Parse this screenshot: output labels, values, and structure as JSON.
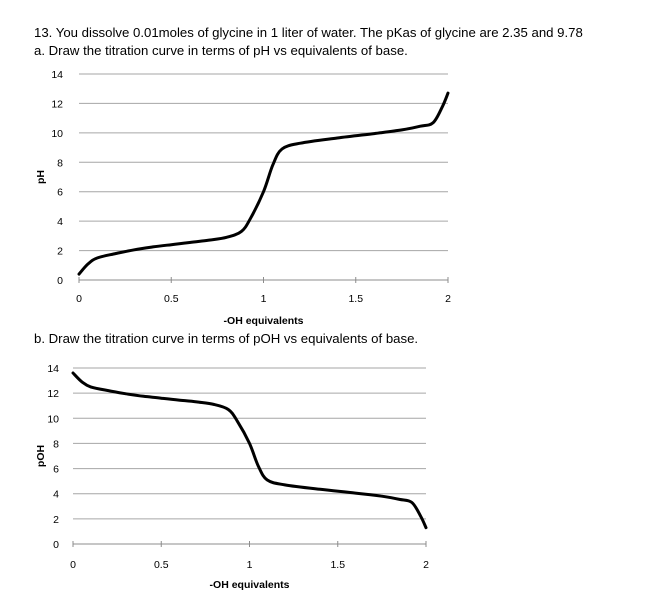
{
  "question": {
    "header": "13. You dissolve 0.01moles of glycine in 1 liter of water. The pKas of glycine are 2.35 and 9.78",
    "part_a": "a. Draw the titration curve in terms of pH vs equivalents of base.",
    "part_b": "b. Draw the titration curve in terms of pOH vs equivalents of base."
  },
  "chart_data": [
    {
      "type": "line",
      "title": "",
      "xlabel": "-OH equivalents",
      "ylabel": "pH",
      "xlim": [
        0,
        2
      ],
      "ylim": [
        0,
        14
      ],
      "x_ticks": [
        "0",
        "0.5",
        "1",
        "1.5",
        "2"
      ],
      "y_ticks": [
        "0",
        "2",
        "4",
        "6",
        "8",
        "10",
        "12",
        "14"
      ],
      "grid": "horizontal",
      "series": [
        {
          "values": [
            [
              0.0,
              0.4
            ],
            [
              0.05,
              1.1
            ],
            [
              0.1,
              1.5
            ],
            [
              0.2,
              1.8
            ],
            [
              0.3,
              2.05
            ],
            [
              0.4,
              2.25
            ],
            [
              0.5,
              2.4
            ],
            [
              0.6,
              2.55
            ],
            [
              0.7,
              2.7
            ],
            [
              0.8,
              2.9
            ],
            [
              0.88,
              3.3
            ],
            [
              0.93,
              4.2
            ],
            [
              1.0,
              6.0
            ],
            [
              1.05,
              7.8
            ],
            [
              1.1,
              8.9
            ],
            [
              1.2,
              9.3
            ],
            [
              1.4,
              9.65
            ],
            [
              1.6,
              9.95
            ],
            [
              1.75,
              10.2
            ],
            [
              1.85,
              10.45
            ],
            [
              1.92,
              10.7
            ],
            [
              1.97,
              11.8
            ],
            [
              2.0,
              12.7
            ]
          ]
        }
      ]
    },
    {
      "type": "line",
      "title": "",
      "xlabel": "-OH equivalents",
      "ylabel": "pOH",
      "xlim": [
        0,
        2
      ],
      "ylim": [
        0,
        14
      ],
      "x_ticks": [
        "0",
        "0.5",
        "1",
        "1.5",
        "2"
      ],
      "y_ticks": [
        "0",
        "2",
        "4",
        "6",
        "8",
        "10",
        "12",
        "14"
      ],
      "grid": "horizontal",
      "series": [
        {
          "values": [
            [
              0.0,
              13.6
            ],
            [
              0.05,
              12.9
            ],
            [
              0.1,
              12.5
            ],
            [
              0.2,
              12.2
            ],
            [
              0.3,
              11.95
            ],
            [
              0.4,
              11.75
            ],
            [
              0.5,
              11.6
            ],
            [
              0.6,
              11.45
            ],
            [
              0.7,
              11.3
            ],
            [
              0.8,
              11.1
            ],
            [
              0.88,
              10.7
            ],
            [
              0.93,
              9.8
            ],
            [
              1.0,
              8.0
            ],
            [
              1.05,
              6.2
            ],
            [
              1.1,
              5.1
            ],
            [
              1.2,
              4.7
            ],
            [
              1.4,
              4.35
            ],
            [
              1.6,
              4.05
            ],
            [
              1.75,
              3.8
            ],
            [
              1.85,
              3.55
            ],
            [
              1.92,
              3.3
            ],
            [
              1.97,
              2.2
            ],
            [
              2.0,
              1.3
            ]
          ]
        }
      ]
    }
  ]
}
